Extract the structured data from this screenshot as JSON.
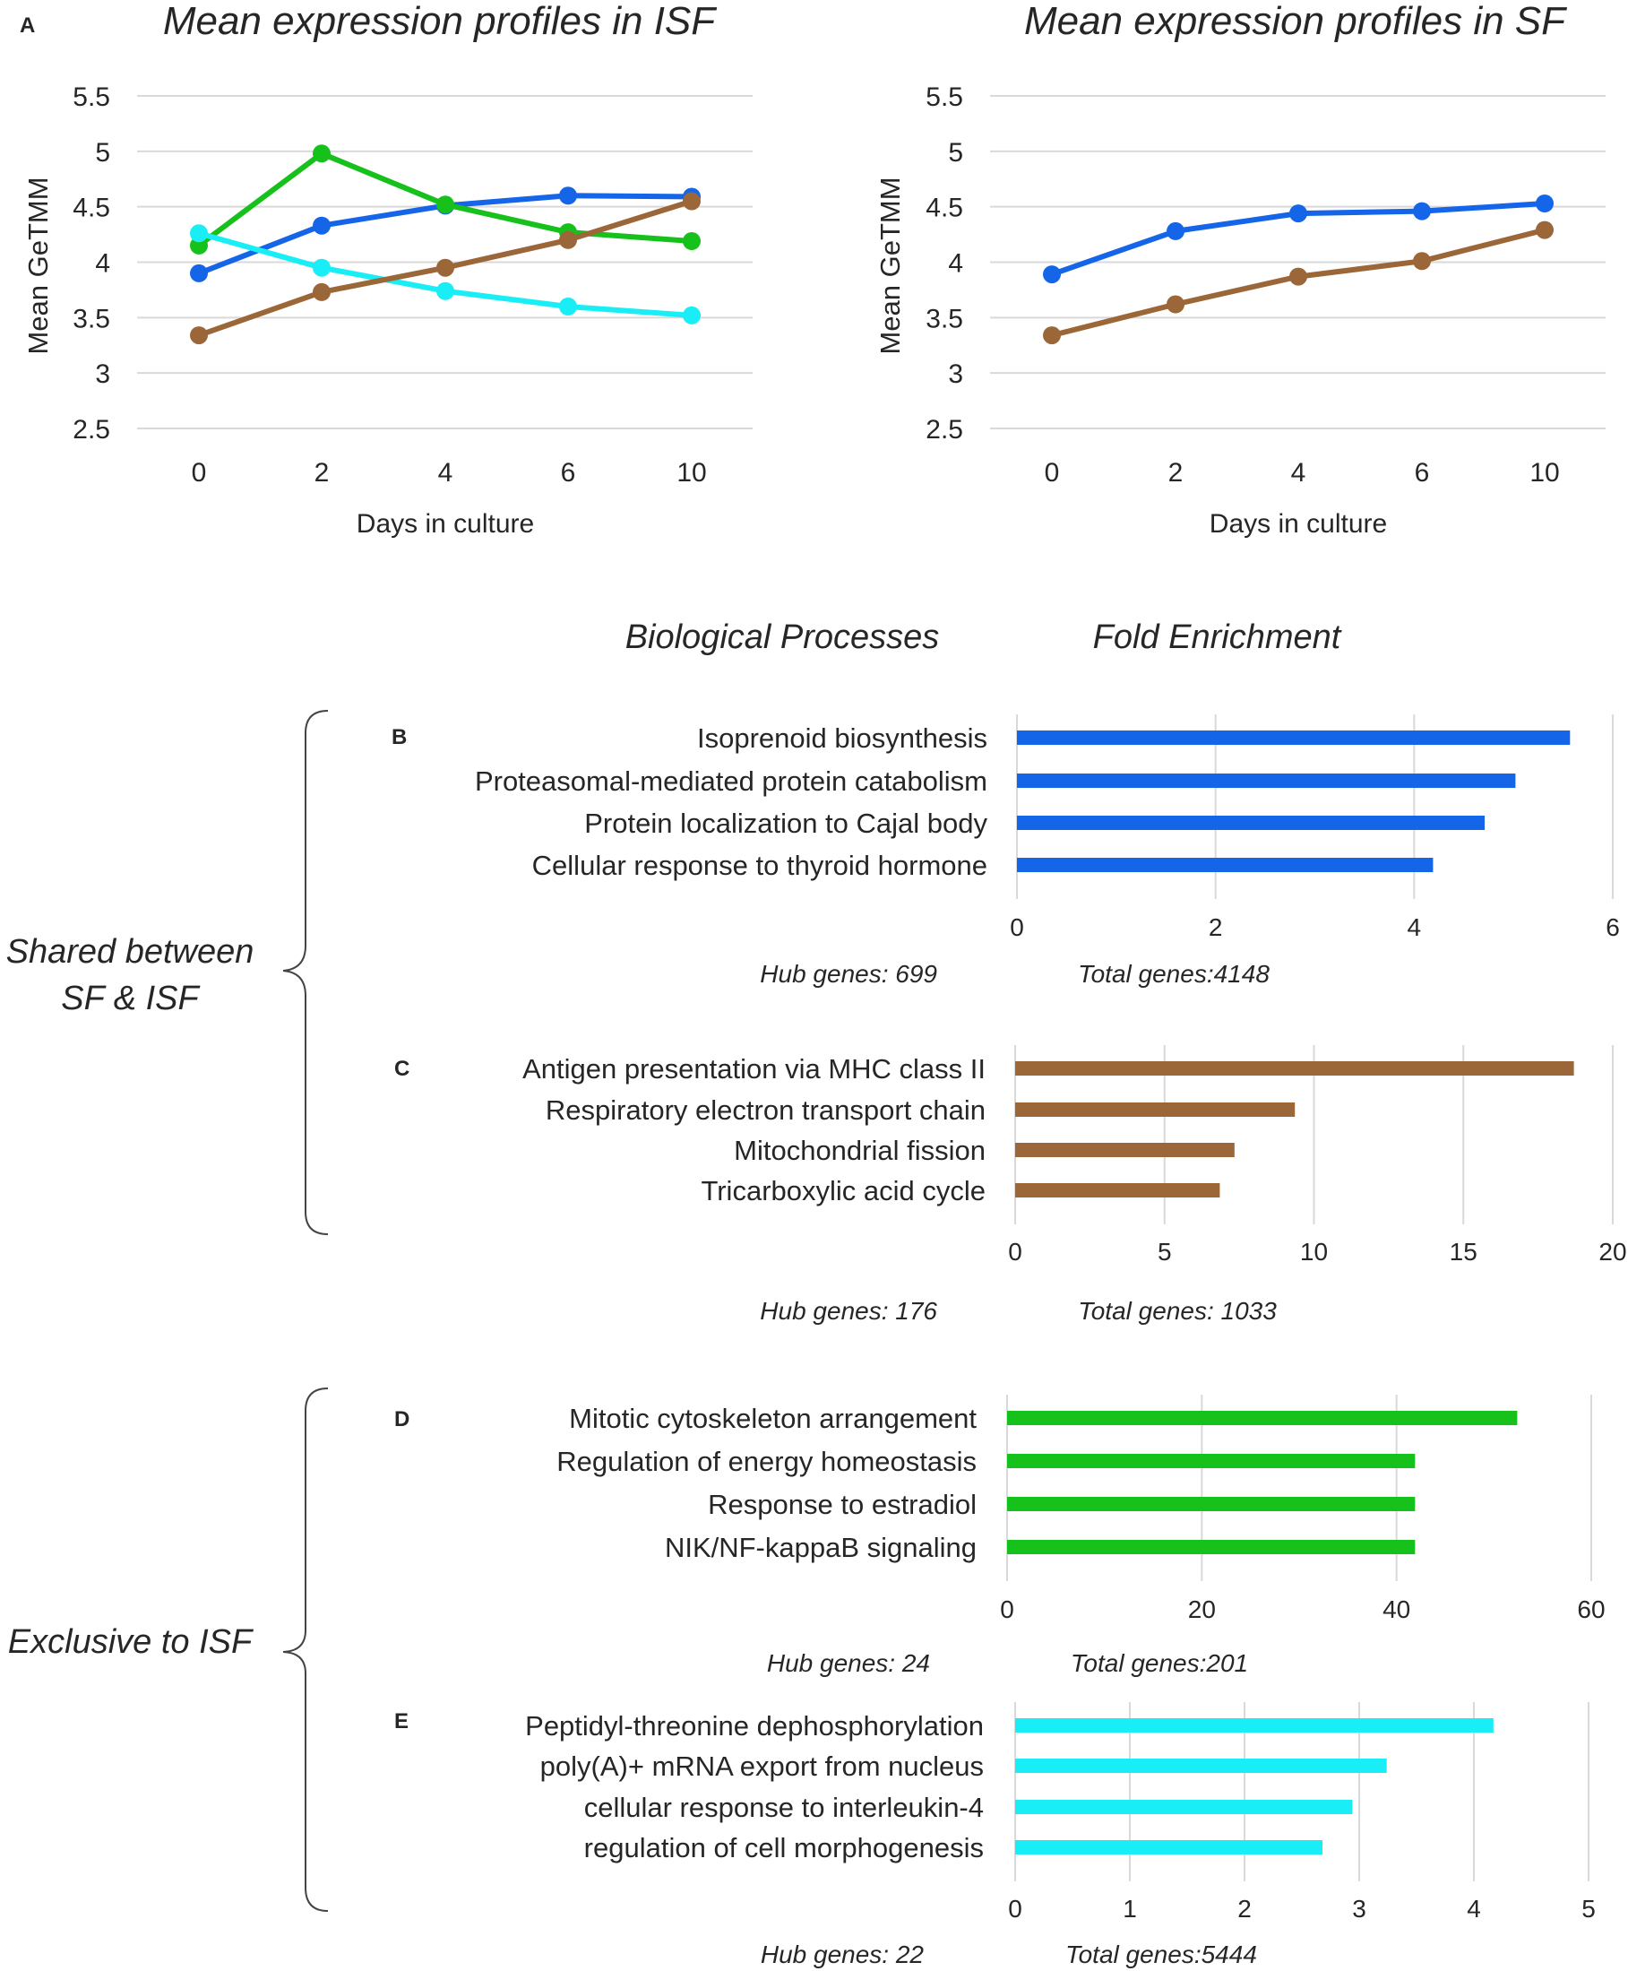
{
  "colors": {
    "blue": "#1565e8",
    "brown": "#9b6638",
    "green": "#17c11b",
    "cyan": "#19eef6",
    "grid": "#d9d9d9",
    "text": "#262626"
  },
  "panel_a": {
    "label": "A"
  },
  "headers": {
    "bio_processes": "Biological Processes",
    "fold_enrichment": "Fold Enrichment"
  },
  "groups": {
    "shared": [
      "Shared between",
      "SF & ISF"
    ],
    "exclusive": "Exclusive to ISF"
  },
  "chart_data": [
    {
      "id": "isf",
      "type": "line",
      "title": "Mean expression profiles in ISF",
      "xlabel": "Days in culture",
      "ylabel": "Mean GeTMM",
      "categories": [
        "0",
        "2",
        "4",
        "6",
        "10"
      ],
      "yticks": [
        "2.5",
        "3",
        "3.5",
        "4",
        "4.5",
        "5",
        "5.5"
      ],
      "ylim": [
        2.5,
        5.5
      ],
      "series": [
        {
          "name": "blue",
          "color": "#1565e8",
          "values": [
            3.9,
            4.33,
            4.51,
            4.6,
            4.59
          ]
        },
        {
          "name": "green",
          "color": "#17c11b",
          "values": [
            4.15,
            4.98,
            4.52,
            4.27,
            4.19
          ]
        },
        {
          "name": "cyan",
          "color": "#19eef6",
          "values": [
            4.26,
            3.95,
            3.74,
            3.6,
            3.52
          ]
        },
        {
          "name": "brown",
          "color": "#9b6638",
          "values": [
            3.34,
            3.73,
            3.95,
            4.2,
            4.55
          ]
        }
      ]
    },
    {
      "id": "sf",
      "type": "line",
      "title": "Mean expression profiles in SF",
      "xlabel": "Days in culture",
      "ylabel": "Mean GeTMM",
      "categories": [
        "0",
        "2",
        "4",
        "6",
        "10"
      ],
      "yticks": [
        "2.5",
        "3",
        "3.5",
        "4",
        "4.5",
        "5",
        "5.5"
      ],
      "ylim": [
        2.5,
        5.5
      ],
      "series": [
        {
          "name": "blue",
          "color": "#1565e8",
          "values": [
            3.89,
            4.28,
            4.44,
            4.46,
            4.53
          ]
        },
        {
          "name": "brown",
          "color": "#9b6638",
          "values": [
            3.34,
            3.62,
            3.87,
            4.01,
            4.29
          ]
        }
      ]
    },
    {
      "id": "B",
      "type": "bar",
      "orientation": "horizontal",
      "label": "B",
      "color": "#1565e8",
      "categories": [
        "Isoprenoid biosynthesis",
        "Proteasomal-mediated protein catabolism",
        "Protein localization to Cajal body",
        "Cellular response to thyroid hormone"
      ],
      "values": [
        5.57,
        5.02,
        4.71,
        4.19
      ],
      "xticks": [
        "0",
        "2",
        "4",
        "6"
      ],
      "xlim": [
        0,
        6
      ],
      "hub": "Hub genes: 699",
      "total": "Total genes:4148"
    },
    {
      "id": "C",
      "type": "bar",
      "orientation": "horizontal",
      "label": "C",
      "color": "#9b6638",
      "categories": [
        "Antigen presentation via MHC class II",
        "Respiratory electron transport chain",
        "Mitochondrial fission",
        "Tricarboxylic acid cycle"
      ],
      "values": [
        18.7,
        9.36,
        7.34,
        6.85
      ],
      "xticks": [
        "0",
        "5",
        "10",
        "15",
        "20"
      ],
      "xlim": [
        0,
        20
      ],
      "hub": "Hub genes: 176",
      "total": "Total genes: 1033"
    },
    {
      "id": "D",
      "type": "bar",
      "orientation": "horizontal",
      "label": "D",
      "color": "#17c11b",
      "categories": [
        "Mitotic cytoskeleton arrangement",
        "Regulation of energy homeostasis",
        "Response to estradiol",
        "NIK/NF-kappaB signaling"
      ],
      "values": [
        52.4,
        41.9,
        41.9,
        41.9
      ],
      "xticks": [
        "0",
        "20",
        "40",
        "60"
      ],
      "xlim": [
        0,
        60
      ],
      "hub": "Hub genes: 24",
      "total": "Total genes:201"
    },
    {
      "id": "E",
      "type": "bar",
      "orientation": "horizontal",
      "label": "E",
      "color": "#19eef6",
      "categories": [
        "Peptidyl-threonine dephosphorylation",
        "poly(A)+ mRNA export from nucleus",
        "cellular response to interleukin-4",
        "regulation of cell morphogenesis"
      ],
      "values": [
        4.17,
        3.24,
        2.94,
        2.68
      ],
      "xticks": [
        "0",
        "1",
        "2",
        "3",
        "4",
        "5"
      ],
      "xlim": [
        0,
        5
      ],
      "hub": "Hub genes: 22",
      "total": "Total genes:5444"
    }
  ]
}
